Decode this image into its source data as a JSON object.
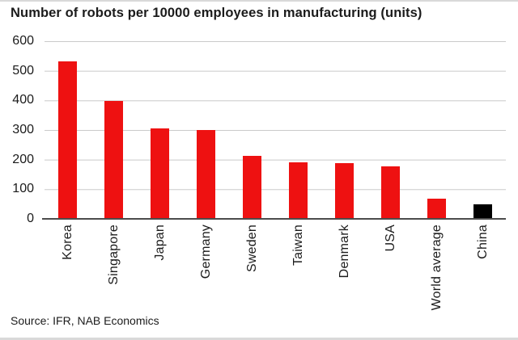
{
  "title": "Number of robots per 10000 employees in manufacturing (units)",
  "source": "Source: IFR, NAB Economics",
  "colors": {
    "bar_red": "#ee1111",
    "bar_black": "#000000",
    "gridline": "#c9c9c9",
    "axis_line": "#4c4c4c",
    "text": "#1b1b1b",
    "border": "#d9d9d9"
  },
  "chart_data": {
    "type": "bar",
    "title": "Number of robots per 10000 employees in manufacturing (units)",
    "categories": [
      "Korea",
      "Singapore",
      "Japan",
      "Germany",
      "Sweden",
      "Taiwan",
      "Denmark",
      "USA",
      "World average",
      "China"
    ],
    "values": [
      531,
      398,
      305,
      301,
      212,
      190,
      188,
      176,
      69,
      49
    ],
    "bar_colors": [
      "#ee1111",
      "#ee1111",
      "#ee1111",
      "#ee1111",
      "#ee1111",
      "#ee1111",
      "#ee1111",
      "#ee1111",
      "#ee1111",
      "#000000"
    ],
    "xlabel": "",
    "ylabel": "",
    "ylim": [
      0,
      600
    ],
    "yticks": [
      600,
      500,
      400,
      300,
      200,
      100,
      0
    ],
    "grid": "horizontal",
    "legend": "none",
    "x_label_rotation": -90
  }
}
